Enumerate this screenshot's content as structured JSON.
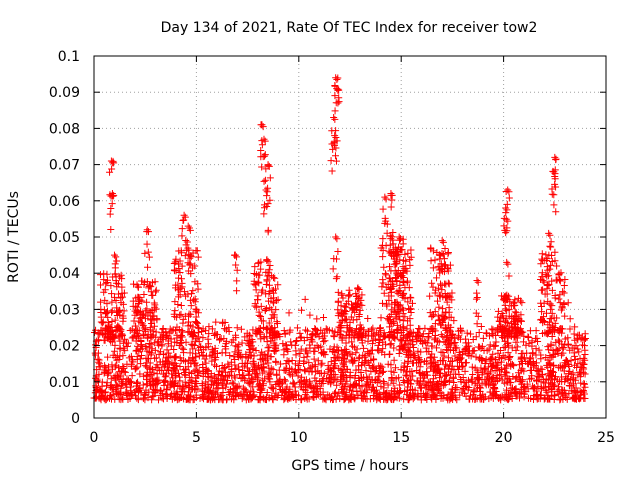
{
  "chart_data": {
    "type": "scatter",
    "title": "Day 134 of 2021, Rate Of TEC Index for receiver tow2",
    "xlabel": "GPS time / hours",
    "ylabel": "ROTI / TECUs",
    "xlim": [
      0,
      25
    ],
    "ylim": [
      0,
      0.1
    ],
    "x_ticks": [
      0,
      5,
      10,
      15,
      20,
      25
    ],
    "x_tick_labels": [
      "0",
      "5",
      "10",
      "15",
      "20",
      "25"
    ],
    "y_ticks": [
      0,
      0.01,
      0.02,
      0.03,
      0.04,
      0.05,
      0.06,
      0.07,
      0.08,
      0.09,
      0.1
    ],
    "y_tick_labels": [
      "0",
      "0.01",
      "0.02",
      "0.03",
      "0.04",
      "0.05",
      "0.06",
      "0.07",
      "0.08",
      "0.09",
      "0.1"
    ],
    "grid": true,
    "marker": "plus",
    "series_color": "#ff0000",
    "x_range": [
      0,
      24
    ],
    "baseline_band": [
      0.005,
      0.025
    ],
    "peaks": [
      {
        "x": 0.85,
        "y": 0.071
      },
      {
        "x": 0.9,
        "y": 0.062
      },
      {
        "x": 1.0,
        "y": 0.045
      },
      {
        "x": 2.6,
        "y": 0.052
      },
      {
        "x": 4.4,
        "y": 0.056
      },
      {
        "x": 4.6,
        "y": 0.053
      },
      {
        "x": 6.9,
        "y": 0.045
      },
      {
        "x": 8.2,
        "y": 0.081
      },
      {
        "x": 8.3,
        "y": 0.077
      },
      {
        "x": 8.5,
        "y": 0.07
      },
      {
        "x": 8.4,
        "y": 0.063
      },
      {
        "x": 11.8,
        "y": 0.094
      },
      {
        "x": 11.85,
        "y": 0.091
      },
      {
        "x": 11.7,
        "y": 0.083
      },
      {
        "x": 11.75,
        "y": 0.078
      },
      {
        "x": 11.8,
        "y": 0.05
      },
      {
        "x": 14.2,
        "y": 0.061
      },
      {
        "x": 14.5,
        "y": 0.062
      },
      {
        "x": 14.9,
        "y": 0.05
      },
      {
        "x": 17.0,
        "y": 0.049
      },
      {
        "x": 18.7,
        "y": 0.038
      },
      {
        "x": 20.2,
        "y": 0.063
      },
      {
        "x": 20.1,
        "y": 0.058
      },
      {
        "x": 20.15,
        "y": 0.043
      },
      {
        "x": 22.2,
        "y": 0.051
      },
      {
        "x": 22.5,
        "y": 0.072
      },
      {
        "x": 22.45,
        "y": 0.068
      }
    ],
    "clusters": [
      {
        "x": 0.9,
        "y_max": 0.04
      },
      {
        "x": 2.5,
        "y_max": 0.038
      },
      {
        "x": 4.5,
        "y_max": 0.047
      },
      {
        "x": 8.4,
        "y_max": 0.044
      },
      {
        "x": 12.5,
        "y_max": 0.036
      },
      {
        "x": 14.6,
        "y_max": 0.05
      },
      {
        "x": 15.0,
        "y_max": 0.047
      },
      {
        "x": 16.9,
        "y_max": 0.047
      },
      {
        "x": 20.3,
        "y_max": 0.034
      },
      {
        "x": 22.4,
        "y_max": 0.046
      }
    ]
  }
}
